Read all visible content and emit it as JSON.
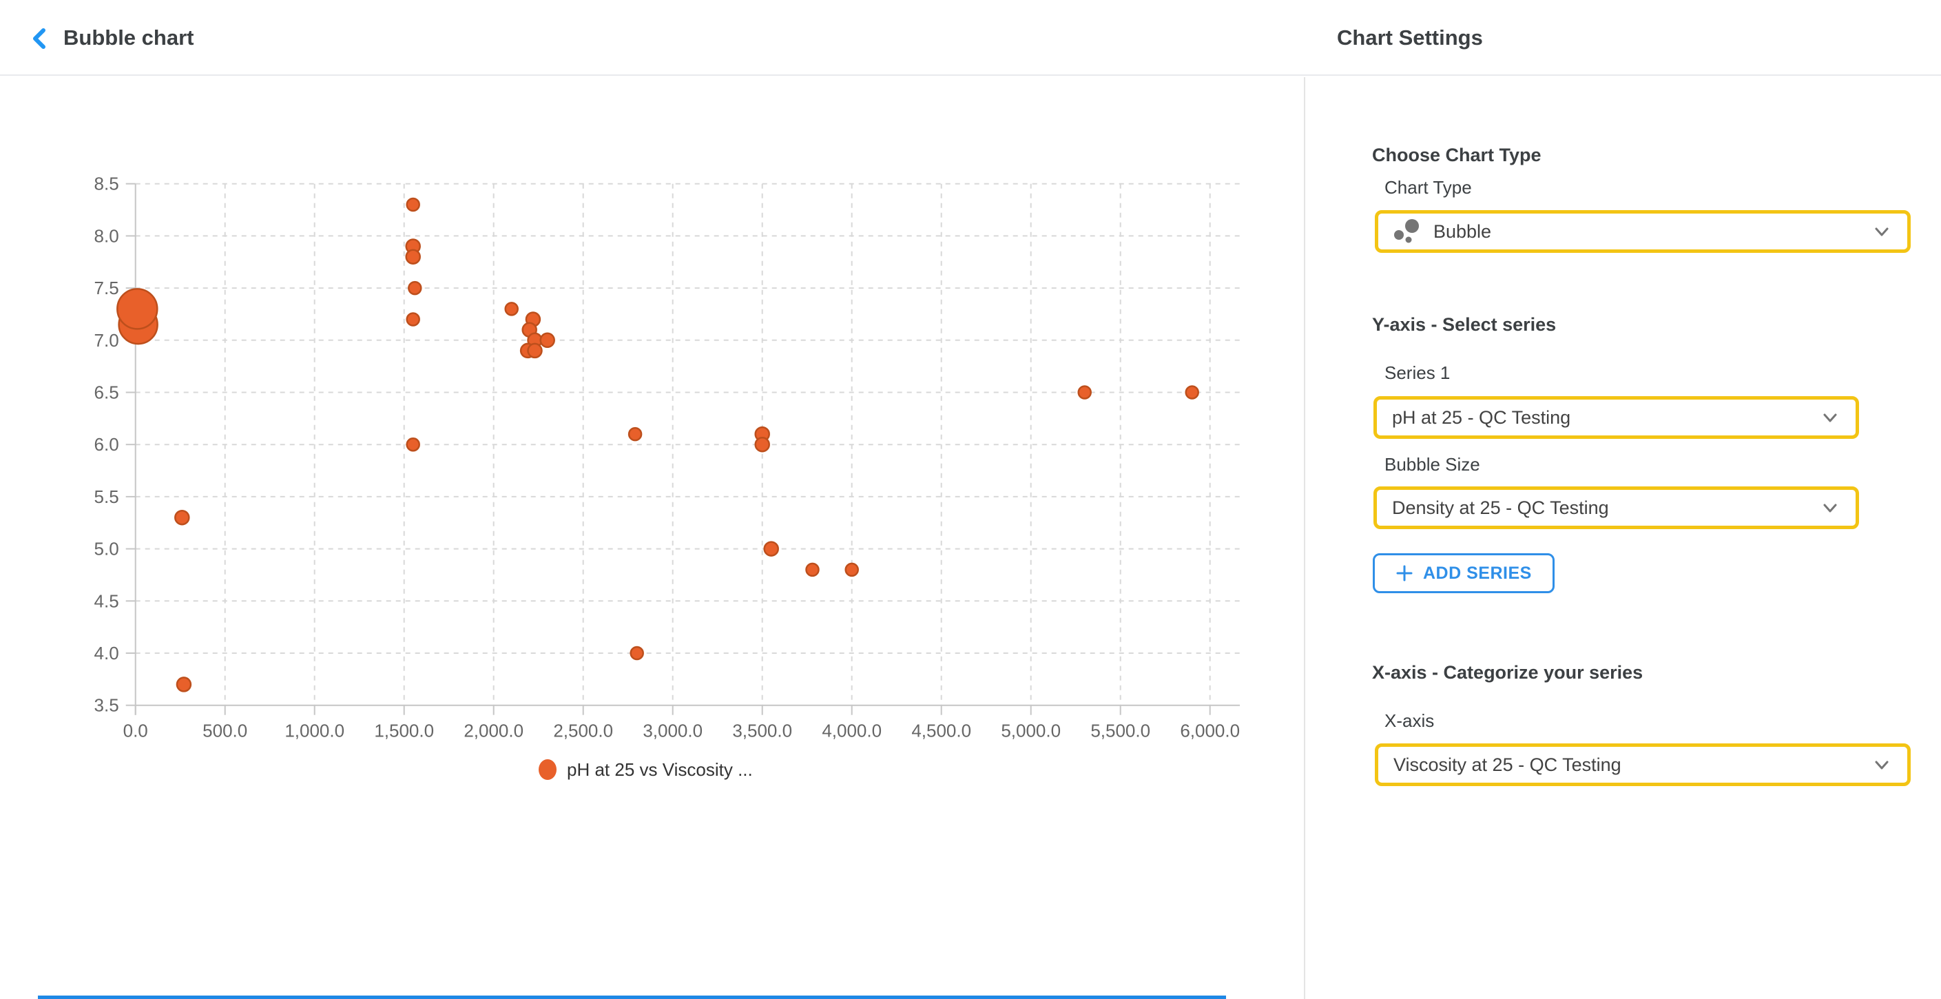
{
  "header": {
    "title": "Bubble chart",
    "settings_title": "Chart Settings"
  },
  "panel": {
    "choose_chart_type_heading": "Choose Chart Type",
    "chart_type_label": "Chart Type",
    "chart_type_value": "Bubble",
    "y_axis_heading": "Y-axis - Select series",
    "series1_label": "Series 1",
    "series1_value": "pH at 25 - QC Testing",
    "bubble_size_label": "Bubble Size",
    "bubble_size_value": "Density at 25 - QC Testing",
    "add_series_label": "ADD SERIES",
    "x_axis_heading": "X-axis - Categorize your series",
    "x_axis_label": "X-axis",
    "x_axis_value": "Viscosity at 25 - QC Testing"
  },
  "colors": {
    "accent_yellow": "#F3C414",
    "accent_blue": "#2F8FE8",
    "back_arrow_blue": "#2196F3",
    "bubble_fill": "#E8602A",
    "bubble_stroke": "#BD4F1C",
    "grid": "#D8D8D8",
    "axis": "#C6C6C6",
    "tick_text": "#666666",
    "legend_text": "#333333",
    "icon_gray": "#757575"
  },
  "chart_data": {
    "type": "scatter",
    "subtype": "bubble",
    "title": "",
    "legend": "pH at 25 vs Viscosity ...",
    "legend_position": "bottom-center",
    "grid": true,
    "x_series": "Viscosity at 25 - QC Testing",
    "y_series": "pH at 25 - QC Testing",
    "size_series": "Density at 25 - QC Testing",
    "xlim": [
      0,
      6170
    ],
    "ylim": [
      3.5,
      8.5
    ],
    "x_axis": {
      "ticks": [
        {
          "value": 0,
          "label": "0.0"
        },
        {
          "value": 500,
          "label": "500.0"
        },
        {
          "value": 1000,
          "label": "1,000.0"
        },
        {
          "value": 1500,
          "label": "1,500.0"
        },
        {
          "value": 2000,
          "label": "2,000.0"
        },
        {
          "value": 2500,
          "label": "2,500.0"
        },
        {
          "value": 3000,
          "label": "3,000.0"
        },
        {
          "value": 3500,
          "label": "3,500.0"
        },
        {
          "value": 4000,
          "label": "4,000.0"
        },
        {
          "value": 4500,
          "label": "4,500.0"
        },
        {
          "value": 5000,
          "label": "5,000.0"
        },
        {
          "value": 5500,
          "label": "5,500.0"
        },
        {
          "value": 6000,
          "label": "6,000.0"
        }
      ]
    },
    "y_axis": {
      "ticks": [
        {
          "value": 8.5,
          "label": "8.5"
        },
        {
          "value": 8.0,
          "label": "8.0"
        },
        {
          "value": 7.5,
          "label": "7.5"
        },
        {
          "value": 7.0,
          "label": "7.0"
        },
        {
          "value": 6.5,
          "label": "6.5"
        },
        {
          "value": 6.0,
          "label": "6.0"
        },
        {
          "value": 5.5,
          "label": "5.5"
        },
        {
          "value": 5.0,
          "label": "5.0"
        },
        {
          "value": 4.5,
          "label": "4.5"
        },
        {
          "value": 4.0,
          "label": "4.0"
        },
        {
          "value": 3.5,
          "label": "3.5"
        }
      ]
    },
    "points": [
      {
        "x": 15,
        "y": 7.15,
        "r": 28
      },
      {
        "x": 10,
        "y": 7.3,
        "r": 29
      },
      {
        "x": 260,
        "y": 5.3,
        "r": 10
      },
      {
        "x": 270,
        "y": 3.7,
        "r": 10
      },
      {
        "x": 1550,
        "y": 8.3,
        "r": 9
      },
      {
        "x": 1550,
        "y": 7.9,
        "r": 10
      },
      {
        "x": 1550,
        "y": 7.8,
        "r": 10
      },
      {
        "x": 1560,
        "y": 7.5,
        "r": 9
      },
      {
        "x": 1550,
        "y": 7.2,
        "r": 9
      },
      {
        "x": 1550,
        "y": 6.0,
        "r": 9
      },
      {
        "x": 2100,
        "y": 7.3,
        "r": 9
      },
      {
        "x": 2220,
        "y": 7.2,
        "r": 10
      },
      {
        "x": 2200,
        "y": 7.1,
        "r": 10
      },
      {
        "x": 2230,
        "y": 7.0,
        "r": 10
      },
      {
        "x": 2300,
        "y": 7.0,
        "r": 10
      },
      {
        "x": 2190,
        "y": 6.9,
        "r": 10
      },
      {
        "x": 2230,
        "y": 6.9,
        "r": 10
      },
      {
        "x": 2790,
        "y": 6.1,
        "r": 9
      },
      {
        "x": 2800,
        "y": 4.0,
        "r": 9
      },
      {
        "x": 3500,
        "y": 6.1,
        "r": 10
      },
      {
        "x": 3500,
        "y": 6.0,
        "r": 10
      },
      {
        "x": 3550,
        "y": 5.0,
        "r": 10
      },
      {
        "x": 3780,
        "y": 4.8,
        "r": 9
      },
      {
        "x": 4000,
        "y": 4.8,
        "r": 9
      },
      {
        "x": 5300,
        "y": 6.5,
        "r": 9
      },
      {
        "x": 5900,
        "y": 6.5,
        "r": 9
      }
    ]
  }
}
